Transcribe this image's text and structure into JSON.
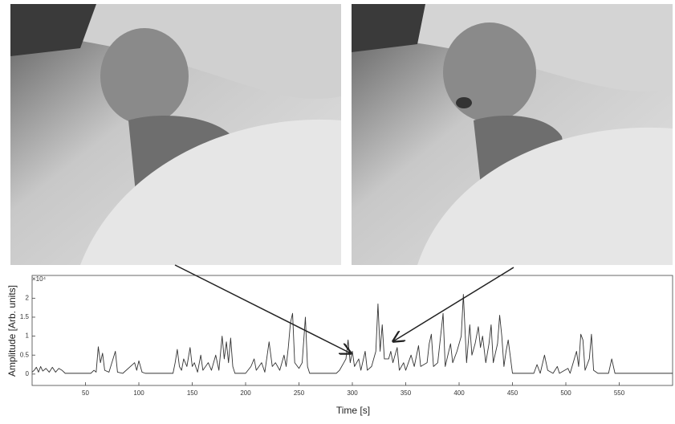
{
  "chart_data": {
    "type": "line",
    "x_label": "Time [s]",
    "y_label": "Amplitude [Arb. units]",
    "y_multiplier": "×10⁴",
    "color": "#333333",
    "xlim": [
      0,
      600
    ],
    "xticks": [
      50,
      100,
      150,
      200,
      250,
      300,
      350,
      400,
      450,
      500,
      550
    ],
    "ylim": [
      -0.3,
      2.6
    ],
    "yticks": [
      0,
      0.5,
      1,
      1.5,
      2
    ],
    "x": [
      0,
      2,
      4,
      6,
      8,
      10,
      13,
      16,
      19,
      22,
      25,
      28,
      31,
      55,
      58,
      60,
      62,
      64,
      66,
      68,
      72,
      78,
      80,
      85,
      96,
      98,
      100,
      103,
      106,
      132,
      134,
      136,
      138,
      140,
      142,
      145,
      148,
      150,
      152,
      155,
      158,
      160,
      165,
      168,
      172,
      175,
      178,
      180,
      182,
      184,
      186,
      188,
      190,
      200,
      205,
      208,
      210,
      215,
      218,
      222,
      225,
      228,
      232,
      236,
      238,
      240,
      242,
      244,
      246,
      250,
      253,
      256,
      258,
      260,
      285,
      288,
      292,
      294,
      296,
      298,
      300,
      302,
      306,
      308,
      312,
      314,
      318,
      322,
      324,
      326,
      328,
      330,
      334,
      336,
      338,
      342,
      344,
      348,
      350,
      355,
      358,
      362,
      364,
      370,
      372,
      374,
      376,
      380,
      385,
      387,
      392,
      394,
      398,
      402,
      404,
      407,
      410,
      412,
      415,
      418,
      420,
      422,
      425,
      428,
      430,
      432,
      436,
      438,
      440,
      442,
      444,
      446,
      450,
      470,
      473,
      476,
      480,
      483,
      488,
      492,
      494,
      502,
      504,
      510,
      512,
      514,
      516,
      518,
      522,
      524,
      526,
      530,
      540,
      543,
      546,
      600
    ],
    "values": [
      0.05,
      0.1,
      0.18,
      0.05,
      0.2,
      0.08,
      0.15,
      0.05,
      0.18,
      0.05,
      0.15,
      0.1,
      0.02,
      0.02,
      0.1,
      0.05,
      0.72,
      0.3,
      0.55,
      0.1,
      0.05,
      0.6,
      0.05,
      0.02,
      0.3,
      0.1,
      0.35,
      0.05,
      0.02,
      0.02,
      0.3,
      0.65,
      0.2,
      0.1,
      0.4,
      0.2,
      0.7,
      0.2,
      0.3,
      0.05,
      0.5,
      0.1,
      0.3,
      0.1,
      0.5,
      0.1,
      1.0,
      0.4,
      0.85,
      0.3,
      0.95,
      0.2,
      0.02,
      0.02,
      0.2,
      0.4,
      0.1,
      0.3,
      0.05,
      0.85,
      0.2,
      0.3,
      0.1,
      0.5,
      0.2,
      0.7,
      1.35,
      1.6,
      0.3,
      0.15,
      0.3,
      1.5,
      0.2,
      0.02,
      0.02,
      0.1,
      0.3,
      0.4,
      0.9,
      0.3,
      0.6,
      0.2,
      0.4,
      0.1,
      0.6,
      0.1,
      0.2,
      0.6,
      1.85,
      0.6,
      1.3,
      0.4,
      0.4,
      0.6,
      0.3,
      0.7,
      0.1,
      0.3,
      0.1,
      0.5,
      0.2,
      0.75,
      0.2,
      0.3,
      0.8,
      1.05,
      0.2,
      0.3,
      1.6,
      0.2,
      0.8,
      0.3,
      0.6,
      1.0,
      2.1,
      0.3,
      1.3,
      0.5,
      0.8,
      1.25,
      0.7,
      1.0,
      0.3,
      0.8,
      1.3,
      0.3,
      0.8,
      1.55,
      1.0,
      0.2,
      0.6,
      0.9,
      0.02,
      0.02,
      0.25,
      0.02,
      0.5,
      0.1,
      0.02,
      0.2,
      0.02,
      0.15,
      0.02,
      0.6,
      0.2,
      1.05,
      0.9,
      0.1,
      0.4,
      1.05,
      0.1,
      0.02,
      0.02,
      0.4,
      0.02,
      0.02
    ]
  }
}
